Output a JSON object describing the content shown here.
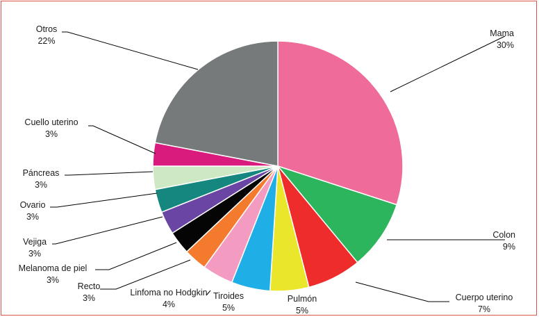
{
  "chart_data": {
    "type": "pie",
    "start_angle_deg": 0,
    "direction": "clockwise",
    "slices": [
      {
        "label": "Mama",
        "value": 30,
        "display": "30%",
        "color": "#ef6c9a"
      },
      {
        "label": "Colon",
        "value": 9,
        "display": "9%",
        "color": "#2db55d"
      },
      {
        "label": "Cuerpo uterino",
        "value": 7,
        "display": "7%",
        "color": "#ee2c2c"
      },
      {
        "label": "Pulmón",
        "value": 5,
        "display": "5%",
        "color": "#e9e62c"
      },
      {
        "label": "Tiroides",
        "value": 5,
        "display": "5%",
        "color": "#20aee6"
      },
      {
        "label": "Linfoma no Hodgkin",
        "value": 4,
        "display": "4%",
        "color": "#f39bc1"
      },
      {
        "label": "Recto",
        "value": 3,
        "display": "3%",
        "color": "#f47a2d"
      },
      {
        "label": "Melanoma de piel",
        "value": 3,
        "display": "3%",
        "color": "#050505"
      },
      {
        "label": "Vejiga",
        "value": 3,
        "display": "3%",
        "color": "#6b45a4"
      },
      {
        "label": "Ovario",
        "value": 3,
        "display": "3%",
        "color": "#16877f"
      },
      {
        "label": "Páncreas",
        "value": 3,
        "display": "3%",
        "color": "#cfe8c4"
      },
      {
        "label": "Cuello uterino",
        "value": 3,
        "display": "3%",
        "color": "#d81b7c"
      },
      {
        "label": "Otros",
        "value": 22,
        "display": "22%",
        "color": "#767a7b"
      }
    ]
  }
}
